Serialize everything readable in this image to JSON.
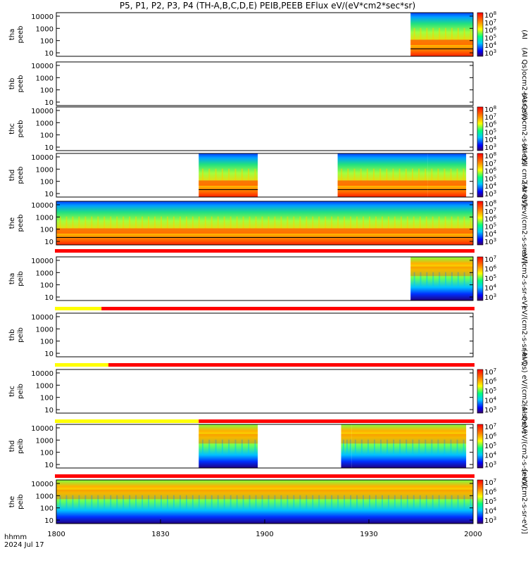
{
  "title": "P5, P1, P2, P3, P4 (TH-A,B,C,D,E) PEIB,PEEB EFlux eV/(eV*cm2*sec*sr)",
  "time_axis": {
    "hhmm_label": "hhmm",
    "date_label": "2024 Jul 17",
    "ticks": [
      "1800",
      "1830",
      "1900",
      "1930",
      "2000"
    ]
  },
  "colors": {
    "red": "#ff0000",
    "orange": "#ff7a00",
    "yellow": "#ffff00",
    "green": "#30e030",
    "cyan": "#00d8ff",
    "blue": "#1030ff",
    "darkblue": "#000080"
  },
  "chart_data": [
    {
      "type": "heatmap",
      "panel": "tha-peeb",
      "y_labels": [
        "tha",
        "peeb"
      ],
      "yscale": "log",
      "yticks": [
        "10",
        "100",
        "1000",
        "10000"
      ],
      "colorbar": {
        "ticks": [
          "10^3",
          "10^4",
          "10^5",
          "10^6",
          "10^7",
          "10^8"
        ],
        "label": "(AI"
      },
      "data_intervals": [
        [
          "1942",
          "2000"
        ]
      ],
      "status_bar": null
    },
    {
      "type": "heatmap",
      "panel": "thb-peeb",
      "y_labels": [
        "thb",
        "peeb"
      ],
      "yscale": "log",
      "yticks": [
        "10",
        "100",
        "1000",
        "10000"
      ],
      "colorbar": {
        "ticks": [],
        "label": "(AI Qs)ocm2-s-sr-eV)"
      },
      "data_intervals": [],
      "status_bar": null
    },
    {
      "type": "heatmap",
      "panel": "thc-peeb",
      "y_labels": [
        "thc",
        "peeb"
      ],
      "yscale": "log",
      "yticks": [
        "10",
        "100",
        "1000",
        "10000"
      ],
      "colorbar": {
        "ticks": [
          "10^3",
          "10^4",
          "10^5",
          "10^6",
          "10^7",
          "10^8"
        ],
        "label": "(AI Qs)ocm2-s-sr-eV)"
      },
      "data_intervals": [],
      "status_bar": null
    },
    {
      "type": "heatmap",
      "panel": "thd-peeb",
      "y_labels": [
        "thd",
        "peeb"
      ],
      "yscale": "log",
      "yticks": [
        "10",
        "100",
        "1000",
        "10000"
      ],
      "colorbar": {
        "ticks": [
          "10^3",
          "10^4",
          "10^5",
          "10^6",
          "10^7",
          "10^8"
        ],
        "label": "(AI QsI cm2-sr-eV)"
      },
      "data_intervals": [
        [
          "1841",
          "1858"
        ],
        [
          "1921",
          "1947"
        ],
        [
          "1947",
          "1958"
        ]
      ],
      "status_bar": null
    },
    {
      "type": "heatmap",
      "panel": "the-peeb",
      "y_labels": [
        "the",
        "peeb"
      ],
      "yscale": "log",
      "yticks": [
        "10",
        "100",
        "1000",
        "10000"
      ],
      "colorbar": {
        "ticks": [
          "10^3",
          "10^4",
          "10^5",
          "10^6",
          "10^7",
          "10^8"
        ],
        "label": "(AI Qs)ev/(cm2-s-sr-eV)"
      },
      "data_intervals": [
        [
          "1800",
          "2000"
        ]
      ],
      "status_bar": "red"
    },
    {
      "type": "heatmap",
      "panel": "tha-peib",
      "y_labels": [
        "tha",
        "peib"
      ],
      "yscale": "log",
      "yticks": [
        "10",
        "100",
        "1000",
        "10000"
      ],
      "colorbar": {
        "ticks": [
          "10^3",
          "10^4",
          "10^5",
          "10^6",
          "10^7"
        ],
        "label": "eV/(cm2-s-sr-eV)"
      },
      "data_intervals": [
        [
          "1942",
          "2000"
        ]
      ],
      "status_bar": "yellow-red"
    },
    {
      "type": "heatmap",
      "panel": "thb-peib",
      "y_labels": [
        "thb",
        "peib"
      ],
      "yscale": "log",
      "yticks": [
        "10",
        "100",
        "1000",
        "10000"
      ],
      "colorbar": {
        "ticks": [],
        "label": "eV/(cm2-s-sr-eV)"
      },
      "data_intervals": [],
      "status_bar": "yellow-red"
    },
    {
      "type": "heatmap",
      "panel": "thc-peib",
      "y_labels": [
        "thc",
        "peib"
      ],
      "yscale": "log",
      "yticks": [
        "10",
        "100",
        "1000",
        "10000"
      ],
      "colorbar": {
        "ticks": [
          "10^3",
          "10^4",
          "10^5",
          "10^6",
          "10^7"
        ],
        "label": "(AI Qs) eV/(cm2-s-sr-eV)"
      },
      "data_intervals": [],
      "status_bar": "yellow-red"
    },
    {
      "type": "heatmap",
      "panel": "thd-peib",
      "y_labels": [
        "thd",
        "peib"
      ],
      "yscale": "log",
      "yticks": [
        "10",
        "100",
        "1000",
        "10000"
      ],
      "colorbar": {
        "ticks": [
          "10^3",
          "10^4",
          "10^5",
          "10^6",
          "10^7"
        ],
        "label": "(AI Qs) eV/(cm2-s-sr-eV)"
      },
      "data_intervals": [
        [
          "1841",
          "1858"
        ],
        [
          "1922",
          "1925"
        ],
        [
          "1925",
          "1958"
        ]
      ],
      "status_bar": "red"
    },
    {
      "type": "heatmap",
      "panel": "the-peib",
      "y_labels": [
        "the",
        "peib"
      ],
      "yscale": "log",
      "yticks": [
        "10",
        "100",
        "1000",
        "10000"
      ],
      "colorbar": {
        "ticks": [
          "10^3",
          "10^4",
          "10^5",
          "10^6",
          "10^7"
        ],
        "label": "[eV/(cm2-s-sr-eV)]"
      },
      "data_intervals": [
        [
          "1800",
          "2000"
        ]
      ],
      "status_bar": null
    }
  ]
}
